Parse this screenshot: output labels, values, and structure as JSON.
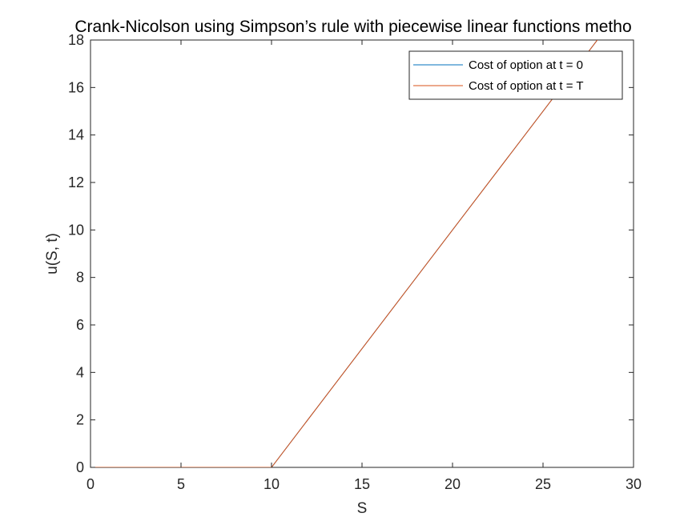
{
  "chart_data": {
    "type": "line",
    "title": "Crank-Nicolson using Simpson’s  rule  with piecewise linear functions metho",
    "xlabel": "S",
    "ylabel": "u(S, t)",
    "xlim": [
      0,
      30
    ],
    "ylim": [
      0,
      18
    ],
    "xticks": [
      0,
      5,
      10,
      15,
      20,
      25,
      30
    ],
    "yticks": [
      0,
      2,
      4,
      6,
      8,
      10,
      12,
      14,
      16,
      18
    ],
    "grid": false,
    "legend_position": "top-right",
    "series": [
      {
        "name": "Cost of option at t = 0",
        "color": "#0072BD",
        "x": [
          0,
          10,
          30
        ],
        "y": [
          0,
          0,
          20
        ]
      },
      {
        "name": "Cost of option at t = T",
        "color": "#D95319",
        "x": [
          0,
          10,
          30
        ],
        "y": [
          0,
          0,
          20
        ]
      }
    ]
  }
}
